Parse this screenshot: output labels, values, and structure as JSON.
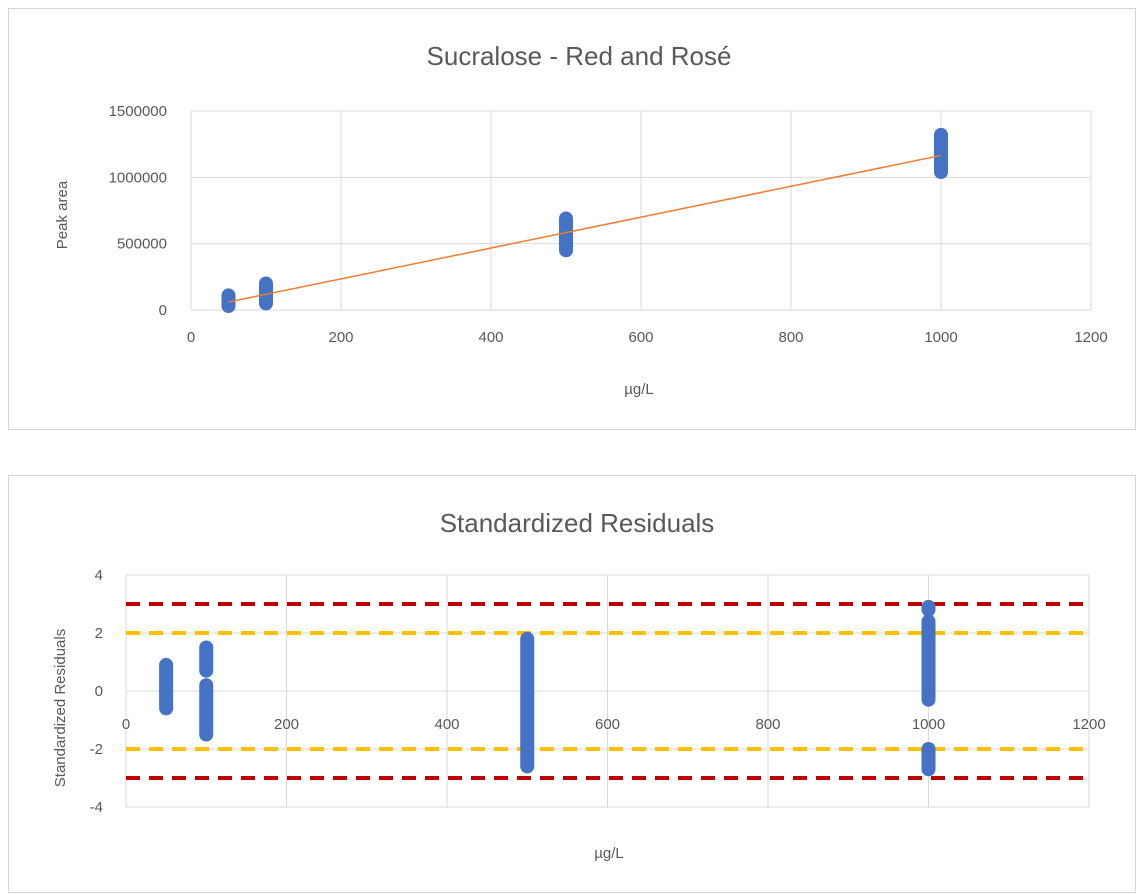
{
  "chart_data": [
    {
      "type": "scatter",
      "title": "Sucralose - Red and Rosé",
      "xlabel": "µg/L",
      "ylabel": "Peak area",
      "xlim": [
        0,
        1200
      ],
      "ylim": [
        0,
        1500000
      ],
      "x_ticks": [
        "0",
        "200",
        "400",
        "600",
        "800",
        "1000",
        "1200"
      ],
      "y_ticks": [
        "0",
        "500000",
        "1000000",
        "1500000"
      ],
      "grid": true,
      "legend": "none",
      "series": [
        {
          "type": "scatter",
          "color": "#4472C4",
          "points": [
            {
              "x": 50,
              "y_min": 30000,
              "y_max": 110000
            },
            {
              "x": 100,
              "y_min": 50000,
              "y_max": 200000
            },
            {
              "x": 500,
              "y_min": 450000,
              "y_max": 690000
            },
            {
              "x": 1000,
              "y_min": 1040000,
              "y_max": 1320000
            }
          ]
        },
        {
          "type": "line",
          "color": "#ED7D31",
          "x": [
            50,
            1000
          ],
          "y": [
            60000,
            1165000
          ]
        }
      ]
    },
    {
      "type": "scatter",
      "title": "Standardized Residuals",
      "xlabel": "µg/L",
      "ylabel": "Standardized Residuals",
      "xlim": [
        0,
        1200
      ],
      "ylim": [
        -4,
        4
      ],
      "x_ticks": [
        "0",
        "200",
        "400",
        "600",
        "800",
        "1000",
        "1200"
      ],
      "y_ticks": [
        "4",
        "2",
        "0",
        "-2",
        "-4"
      ],
      "grid": true,
      "legend": "none",
      "series": [
        {
          "type": "scatter",
          "color": "#4472C4",
          "points": [
            {
              "x": 50,
              "y_min": -0.6,
              "y_max": 0.9
            },
            {
              "x": 100,
              "y_min": -1.5,
              "y_max": 0.2
            },
            {
              "x": 100,
              "y_min": 0.7,
              "y_max": 1.5
            },
            {
              "x": 500,
              "y_min": -2.6,
              "y_max": 1.8
            },
            {
              "x": 1000,
              "y_min": -0.3,
              "y_max": 2.4
            },
            {
              "x": 1000,
              "y_min": 2.8,
              "y_max": 2.9
            },
            {
              "x": 1000,
              "y_min": -2.7,
              "y_max": -2.0
            }
          ]
        }
      ],
      "reference_lines": [
        {
          "y": 3,
          "color": "#C00000"
        },
        {
          "y": 2,
          "color": "#FFC000"
        },
        {
          "y": -2,
          "color": "#FFC000"
        },
        {
          "y": -3,
          "color": "#C00000"
        }
      ]
    }
  ]
}
